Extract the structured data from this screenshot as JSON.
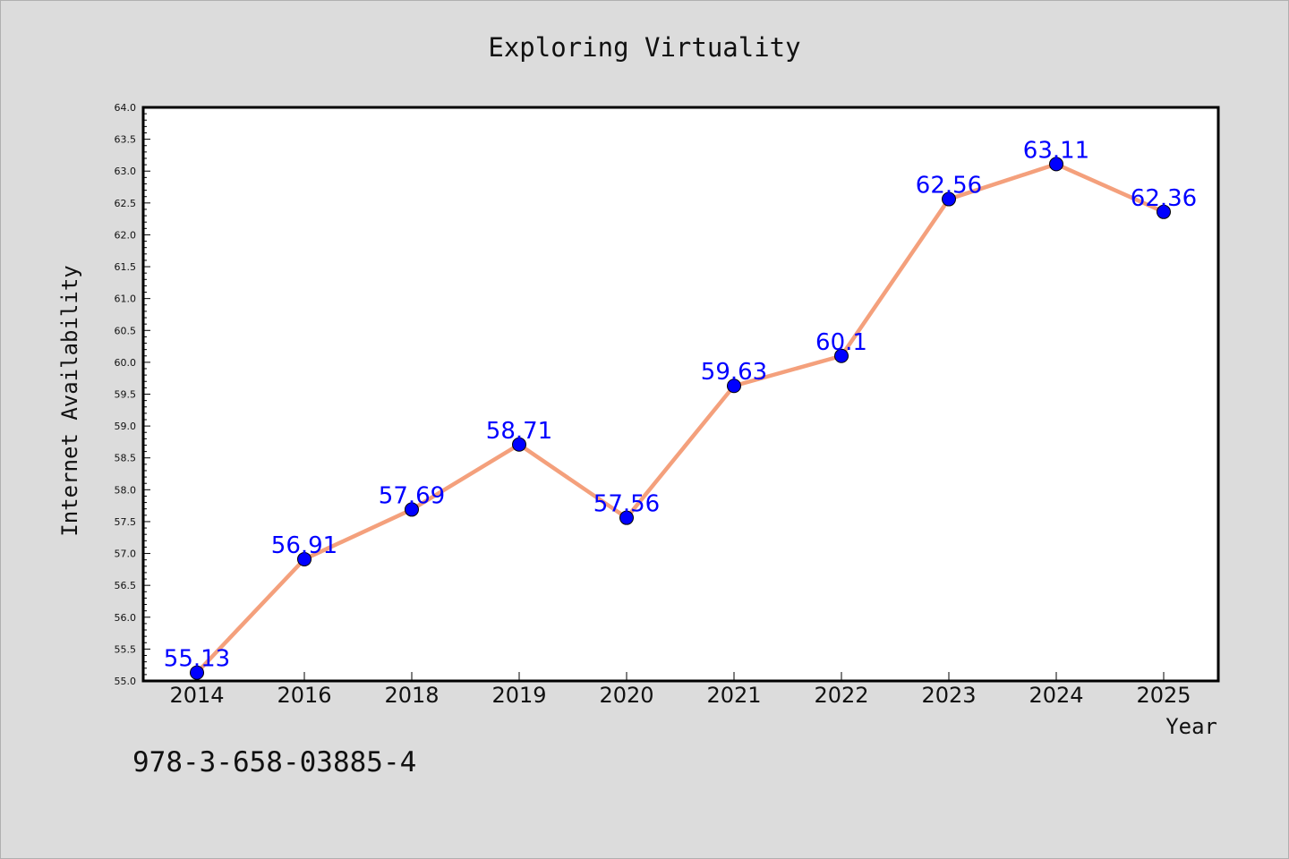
{
  "chart_data": {
    "type": "line",
    "title": "Exploring Virtuality",
    "xlabel": "Year",
    "ylabel": "Internet Availability",
    "categories": [
      "2014",
      "2016",
      "2018",
      "2019",
      "2020",
      "2021",
      "2022",
      "2023",
      "2024",
      "2025"
    ],
    "series": [
      {
        "values": [
          55.13,
          56.91,
          57.69,
          58.71,
          57.56,
          59.63,
          60.1,
          62.56,
          63.11,
          62.36
        ],
        "data_labels": [
          "55.13",
          "56.91",
          "57.69",
          "58.71",
          "57.56",
          "59.63",
          "60.1",
          "62.56",
          "63.11",
          "62.36"
        ],
        "line_color": "#f4a07c",
        "marker_color": "#0000ff"
      }
    ],
    "ylim": [
      55.0,
      64.0
    ],
    "yticks": [
      "55.0",
      "55.5",
      "56.0",
      "56.5",
      "57.0",
      "57.5",
      "58.0",
      "58.5",
      "59.0",
      "59.5",
      "60.0",
      "60.5",
      "61.0",
      "61.5",
      "62.0",
      "62.5",
      "63.0",
      "63.5",
      "64.0"
    ],
    "grid": false,
    "legend": "none"
  },
  "footer": {
    "code": "978-3-658-03885-4"
  },
  "colors": {
    "background": "#dcdcdc",
    "plot_area": "#ffffff",
    "line": "#f4a07c",
    "marker": "#0000ff",
    "data_label": "#0000ff"
  }
}
